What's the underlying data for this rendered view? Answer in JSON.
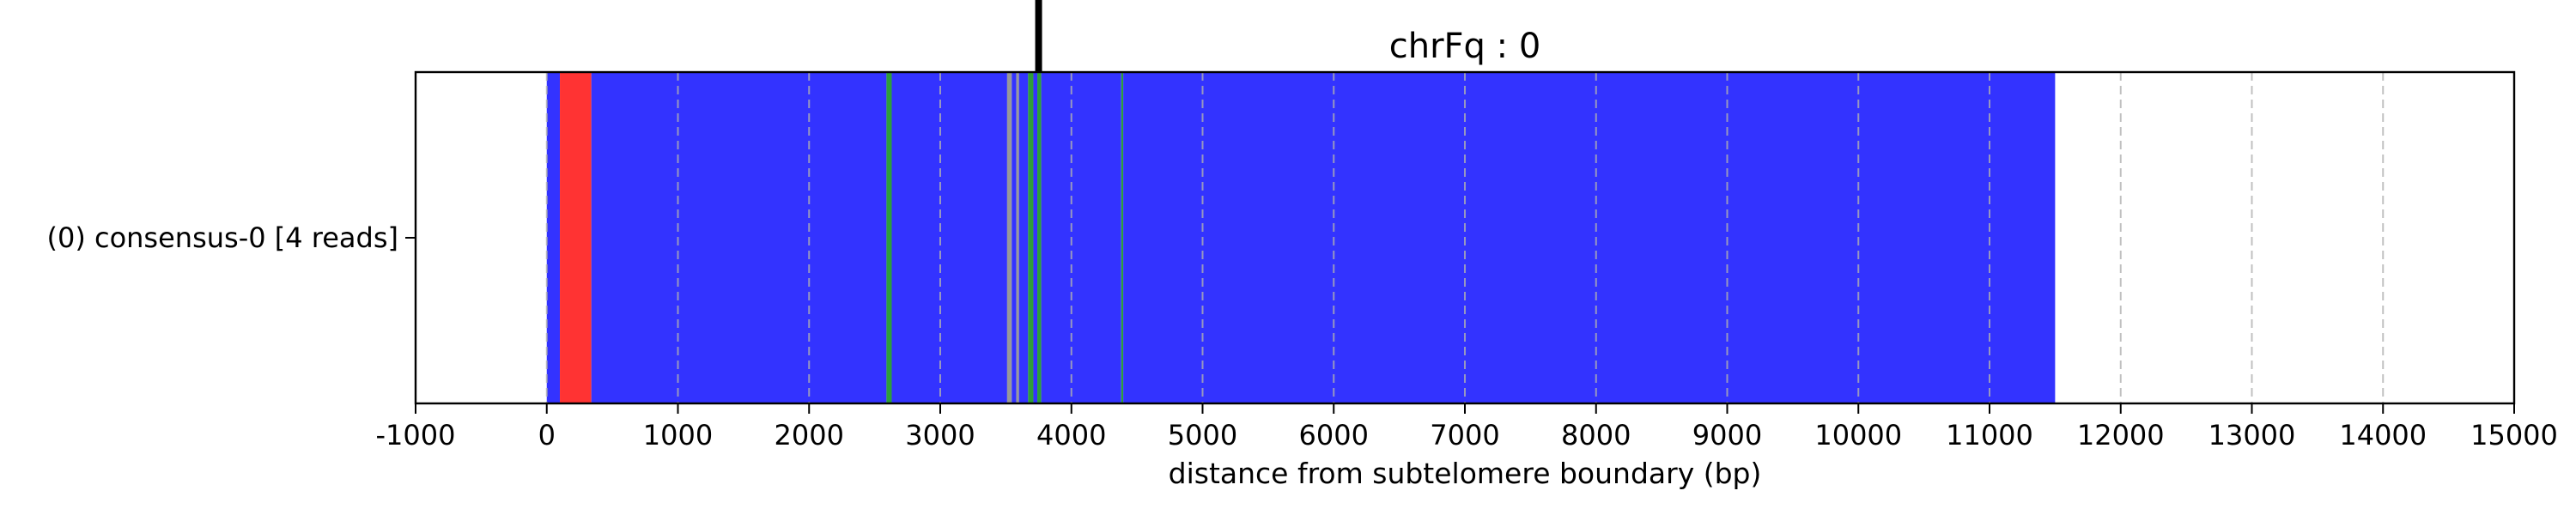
{
  "chart_data": {
    "type": "bar",
    "orientation": "horizontal",
    "title": "chrFq : 0",
    "xlabel": "distance from subtelomere boundary (bp)",
    "ylabel": "",
    "xlim": [
      -1000,
      15000
    ],
    "xticks": [
      -1000,
      0,
      1000,
      2000,
      3000,
      4000,
      5000,
      6000,
      7000,
      8000,
      9000,
      10000,
      11000,
      12000,
      13000,
      14000,
      15000
    ],
    "grid": {
      "x": true,
      "style": "dashed"
    },
    "categories": [
      "(0) consensus-0 [4 reads]"
    ],
    "marker_line_x": 3750,
    "colors": {
      "blue": "#3333ff",
      "red": "#ff3333",
      "green": "#2e9e3a",
      "gray": "#999999",
      "marker": "#000000"
    },
    "segments": [
      {
        "start": 0,
        "end": 100,
        "color": "#3333ff"
      },
      {
        "start": 100,
        "end": 340,
        "color": "#ff3333"
      },
      {
        "start": 340,
        "end": 2590,
        "color": "#3333ff"
      },
      {
        "start": 2590,
        "end": 2630,
        "color": "#2e9e3a"
      },
      {
        "start": 2630,
        "end": 3510,
        "color": "#3333ff"
      },
      {
        "start": 3510,
        "end": 3545,
        "color": "#999999"
      },
      {
        "start": 3545,
        "end": 3580,
        "color": "#3333ff"
      },
      {
        "start": 3580,
        "end": 3600,
        "color": "#999999"
      },
      {
        "start": 3600,
        "end": 3670,
        "color": "#3333ff"
      },
      {
        "start": 3670,
        "end": 3710,
        "color": "#2e9e3a"
      },
      {
        "start": 3710,
        "end": 3740,
        "color": "#3333ff"
      },
      {
        "start": 3740,
        "end": 3770,
        "color": "#2e9e3a"
      },
      {
        "start": 3770,
        "end": 4380,
        "color": "#3333ff"
      },
      {
        "start": 4380,
        "end": 4395,
        "color": "#2e9e3a"
      },
      {
        "start": 4395,
        "end": 11500,
        "color": "#3333ff"
      }
    ]
  }
}
